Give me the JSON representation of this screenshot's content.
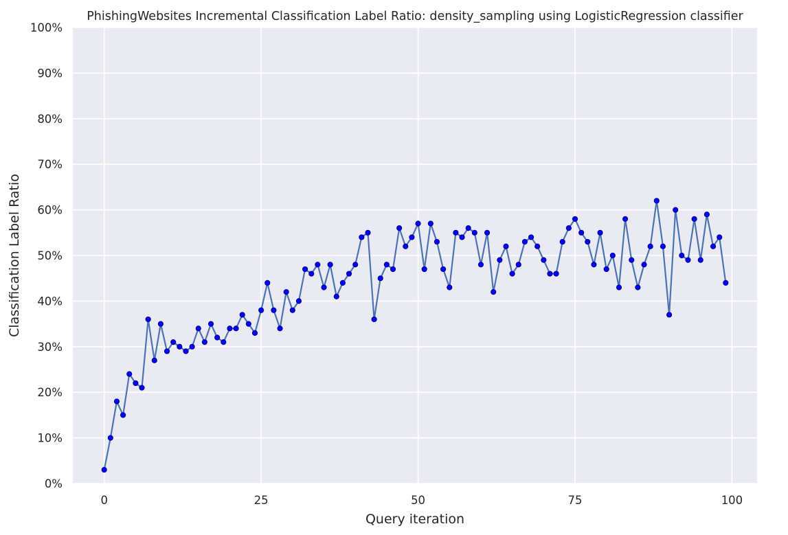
{
  "chart_data": {
    "type": "line",
    "title": "PhishingWebsites Incremental Classification Label Ratio: density_sampling using LogisticRegression classifier",
    "xlabel": "Query iteration",
    "ylabel": "Classification Label Ratio",
    "xlim": [
      -5,
      104
    ],
    "ylim": [
      0,
      100
    ],
    "x_ticks": [
      0,
      25,
      50,
      75,
      100
    ],
    "y_ticks": [
      0,
      10,
      20,
      30,
      40,
      50,
      60,
      70,
      80,
      90,
      100
    ],
    "y_tick_labels": [
      "0%",
      "10%",
      "20%",
      "30%",
      "40%",
      "50%",
      "60%",
      "70%",
      "80%",
      "90%",
      "100%"
    ],
    "grid": true,
    "legend": "none",
    "colors": {
      "background": "#eaeaf2",
      "grid": "#ffffff",
      "line": "#4c72b0",
      "marker": "#0000ff",
      "marker_edge": "#00008b"
    },
    "series": [
      {
        "x": [
          0,
          1,
          2,
          3,
          4,
          5,
          6,
          7,
          8,
          9,
          10,
          11,
          12,
          13,
          14,
          15,
          16,
          17,
          18,
          19,
          20,
          21,
          22,
          23,
          24,
          25,
          26,
          27,
          28,
          29,
          30,
          31,
          32,
          33,
          34,
          35,
          36,
          37,
          38,
          39,
          40,
          41,
          42,
          43,
          44,
          45,
          46,
          47,
          48,
          49,
          50,
          51,
          52,
          53,
          54,
          55,
          56,
          57,
          58,
          59,
          60,
          61,
          62,
          63,
          64,
          65,
          66,
          67,
          68,
          69,
          70,
          71,
          72,
          73,
          74,
          75,
          76,
          77,
          78,
          79,
          80,
          81,
          82,
          83,
          84,
          85,
          86,
          87,
          88,
          89,
          90,
          91,
          92,
          93,
          94,
          95,
          96,
          97,
          98,
          99
        ],
        "values": [
          3,
          10,
          18,
          15,
          24,
          22,
          21,
          36,
          27,
          35,
          29,
          31,
          30,
          29,
          30,
          34,
          31,
          35,
          32,
          31,
          34,
          34,
          37,
          35,
          33,
          38,
          44,
          38,
          34,
          42,
          38,
          40,
          47,
          46,
          48,
          43,
          48,
          41,
          44,
          46,
          48,
          54,
          55,
          36,
          45,
          48,
          47,
          56,
          52,
          54,
          57,
          47,
          57,
          53,
          47,
          43,
          55,
          54,
          56,
          55,
          48,
          55,
          42,
          49,
          52,
          46,
          48,
          53,
          54,
          52,
          49,
          46,
          46,
          53,
          56,
          58,
          55,
          53,
          48,
          55,
          47,
          50,
          43,
          58,
          49,
          43,
          48,
          52,
          62,
          52,
          37,
          60,
          50,
          49,
          58,
          49,
          59,
          52,
          54,
          44
        ]
      }
    ]
  }
}
